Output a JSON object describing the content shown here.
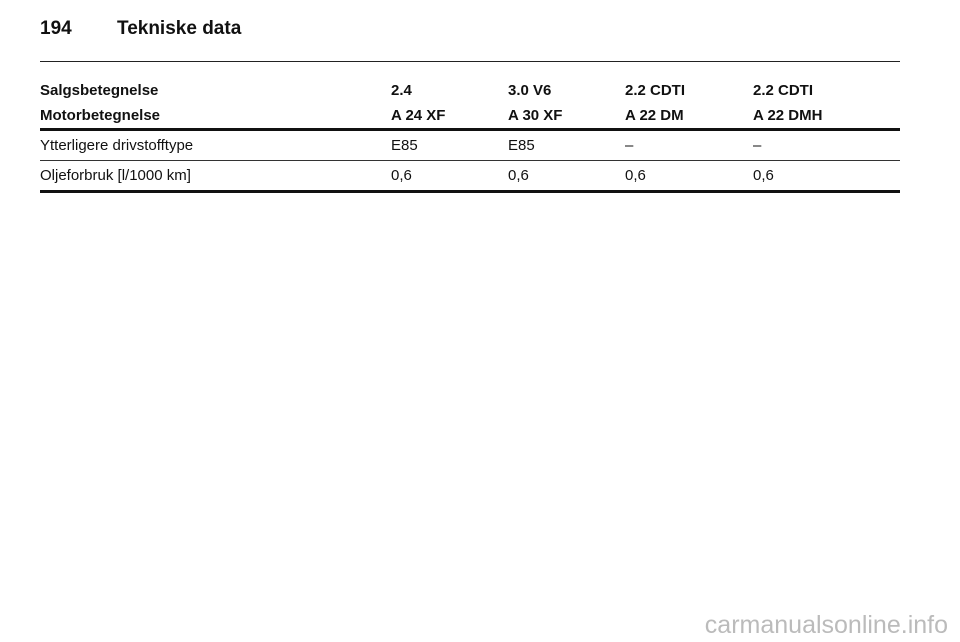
{
  "header": {
    "page": "194",
    "title": "Tekniske data"
  },
  "table": {
    "header_rows": [
      [
        "Salgsbetegnelse",
        "2.4",
        "3.0 V6",
        "2.2 CDTI",
        "2.2 CDTI"
      ],
      [
        "Motorbetegnelse",
        "A 24 XF",
        "A 30 XF",
        "A 22 DM",
        "A 22 DMH"
      ]
    ],
    "rows": [
      [
        "Ytterligere drivstofftype",
        "E85",
        "E85",
        "–",
        "–"
      ],
      [
        "Oljeforbruk [l/1000 km]",
        "0,6",
        "0,6",
        "0,6",
        "0,6"
      ]
    ]
  },
  "footer": {
    "watermark": "carmanualsonline.info"
  }
}
